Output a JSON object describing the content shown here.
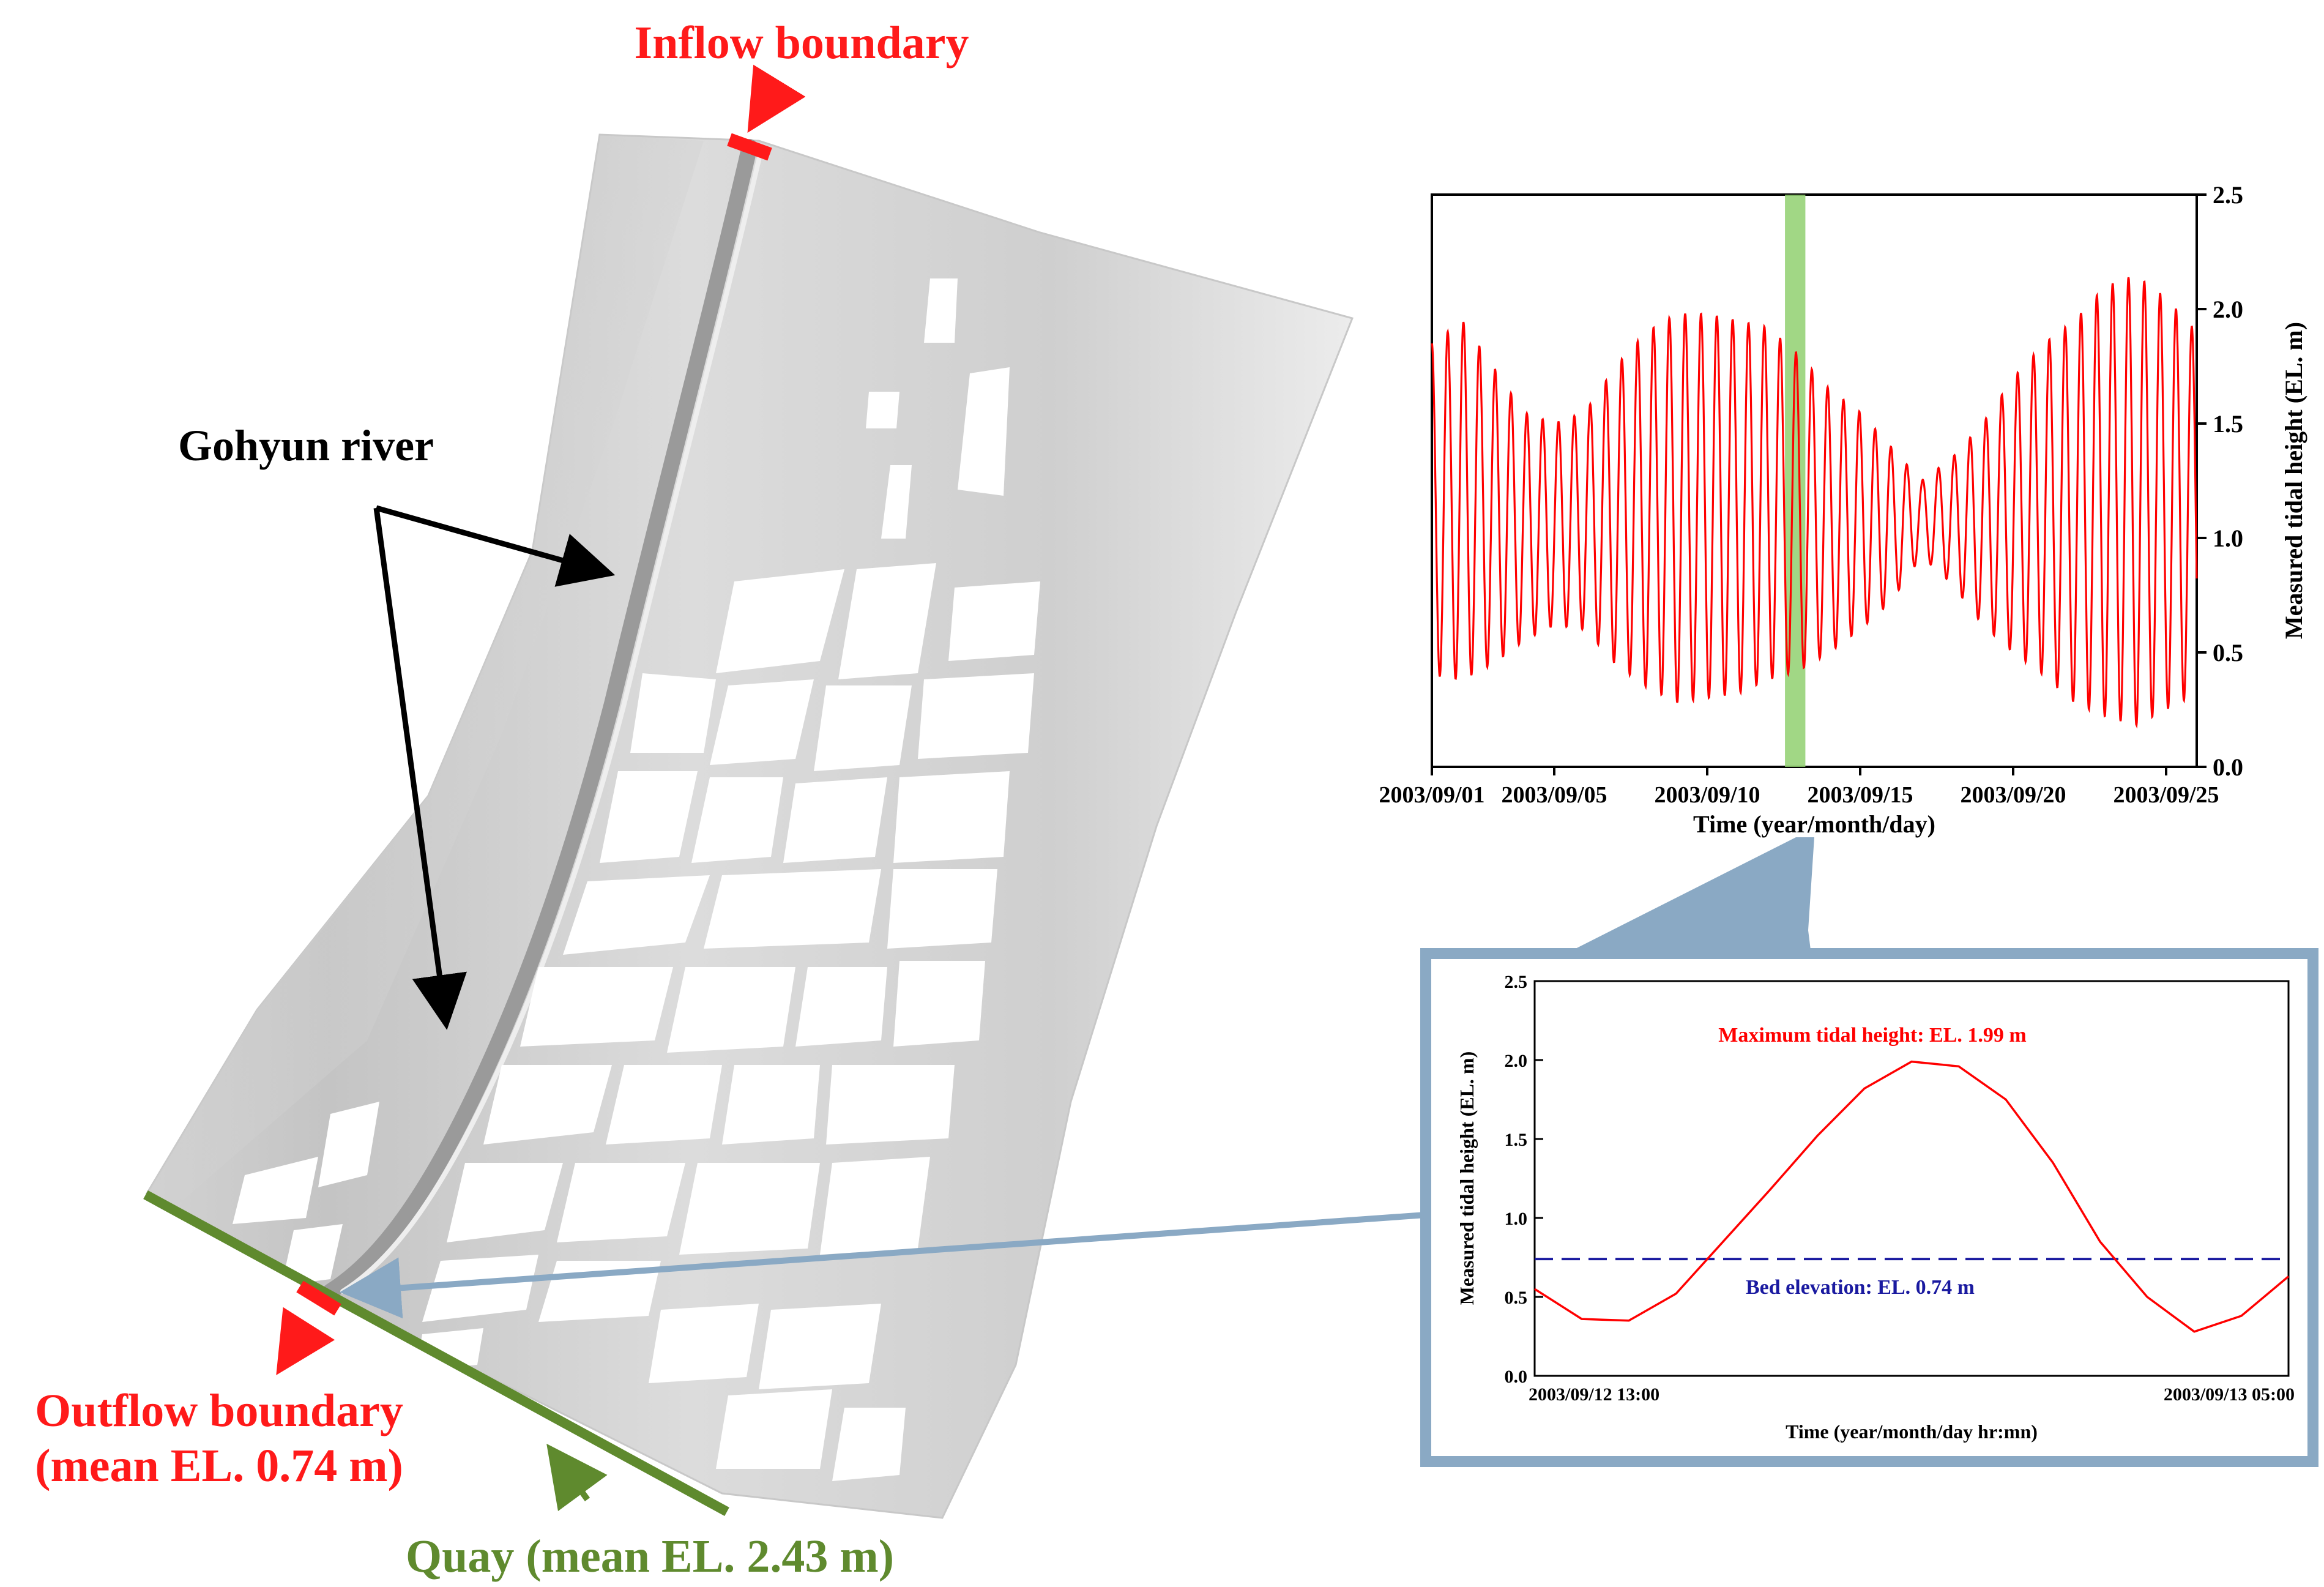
{
  "annotations": {
    "inflow": "Inflow boundary",
    "river": "Gohyun river",
    "outflow_line1": "Outflow boundary",
    "outflow_line2": "(mean EL. 0.74 m)",
    "quay": "Quay (mean EL. 2.43 m)"
  },
  "colors": {
    "boundary_red": "#ff1a1a",
    "quay_green": "#5f8a2e",
    "series_red": "#ff0000",
    "highlight_green": "#90d070",
    "zoom_frame": "#8aa9c4",
    "bed_line": "#1a1aa0",
    "arrow_black": "#000000"
  },
  "chart_data": [
    {
      "type": "line",
      "title": "",
      "xlabel": "Time (year/month/day)",
      "ylabel": "Measured tidal height (EL. m)",
      "ylim": [
        0.0,
        2.5
      ],
      "yticks": [
        "0.0",
        "0.5",
        "1.0",
        "1.5",
        "2.0",
        "2.5"
      ],
      "xlim": [
        "2003/09/01",
        "2003/09/26"
      ],
      "xticks": [
        "2003/09/01",
        "2003/09/05",
        "2003/09/10",
        "2003/09/15",
        "2003/09/20",
        "2003/09/25"
      ],
      "y_axis_side": "right",
      "highlight_band": "2003/09/12 13:00 to 2003/09/13 05:00",
      "series": [
        {
          "semidiurnal_period_hours": 12.42,
          "daily_envelope": [
            {
              "date": "2003/09/01",
              "high": 1.85,
              "low": 0.4
            },
            {
              "date": "2003/09/02",
              "high": 1.95,
              "low": 0.38
            },
            {
              "date": "2003/09/03",
              "high": 1.75,
              "low": 0.45
            },
            {
              "date": "2003/09/04",
              "high": 1.55,
              "low": 0.55
            },
            {
              "date": "2003/09/05",
              "high": 1.5,
              "low": 0.62
            },
            {
              "date": "2003/09/06",
              "high": 1.55,
              "low": 0.6
            },
            {
              "date": "2003/09/07",
              "high": 1.75,
              "low": 0.45
            },
            {
              "date": "2003/09/08",
              "high": 1.9,
              "low": 0.35
            },
            {
              "date": "2003/09/09",
              "high": 1.98,
              "low": 0.28
            },
            {
              "date": "2003/09/10",
              "high": 1.98,
              "low": 0.3
            },
            {
              "date": "2003/09/11",
              "high": 1.95,
              "low": 0.32
            },
            {
              "date": "2003/09/12",
              "high": 1.92,
              "low": 0.38
            },
            {
              "date": "2003/09/13",
              "high": 1.8,
              "low": 0.42
            },
            {
              "date": "2003/09/14",
              "high": 1.65,
              "low": 0.5
            },
            {
              "date": "2003/09/15",
              "high": 1.55,
              "low": 0.6
            },
            {
              "date": "2003/09/16",
              "high": 1.4,
              "low": 0.72
            },
            {
              "date": "2003/09/17",
              "high": 1.25,
              "low": 0.92
            },
            {
              "date": "2003/09/18",
              "high": 1.35,
              "low": 0.8
            },
            {
              "date": "2003/09/19",
              "high": 1.5,
              "low": 0.62
            },
            {
              "date": "2003/09/20",
              "high": 1.7,
              "low": 0.5
            },
            {
              "date": "2003/09/21",
              "high": 1.85,
              "low": 0.4
            },
            {
              "date": "2003/09/22",
              "high": 1.95,
              "low": 0.28
            },
            {
              "date": "2003/09/23",
              "high": 2.1,
              "low": 0.22
            },
            {
              "date": "2003/09/24",
              "high": 2.15,
              "low": 0.18
            },
            {
              "date": "2003/09/25",
              "high": 2.05,
              "low": 0.25
            },
            {
              "date": "2003/09/26",
              "high": 1.9,
              "low": 0.32
            }
          ]
        }
      ]
    },
    {
      "type": "line",
      "title": "",
      "xlabel": "Time (year/month/day hr:mn)",
      "ylabel": "Measured tidal height (EL. m)",
      "ylim": [
        0.0,
        2.5
      ],
      "yticks": [
        "0.0",
        "0.5",
        "1.0",
        "1.5",
        "2.0",
        "2.5"
      ],
      "xticks": [
        "2003/09/12 13:00",
        "2003/09/13 05:00"
      ],
      "x_hours": [
        0,
        1,
        2,
        3,
        4,
        5,
        6,
        7,
        8,
        9,
        10,
        11,
        12,
        13,
        14,
        15,
        16
      ],
      "series": [
        {
          "values": [
            0.55,
            0.36,
            0.35,
            0.52,
            0.85,
            1.18,
            1.52,
            1.82,
            1.99,
            1.96,
            1.75,
            1.35,
            0.85,
            0.5,
            0.28,
            0.38,
            0.63
          ]
        }
      ],
      "annotation_max": "Maximum tidal height: EL. 1.99 m",
      "bed_elevation": 0.74,
      "annotation_bed": "Bed elevation: EL. 0.74 m"
    }
  ]
}
